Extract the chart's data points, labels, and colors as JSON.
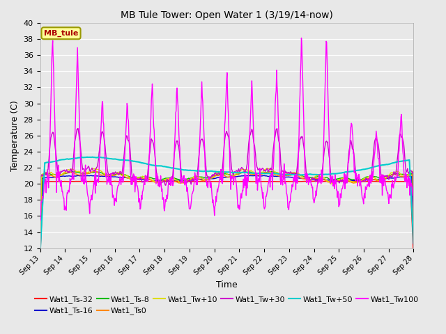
{
  "title": "MB Tule Tower: Open Water 1 (3/19/14-now)",
  "xlabel": "Time",
  "ylabel": "Temperature (C)",
  "ylim": [
    12,
    40
  ],
  "yticks": [
    12,
    14,
    16,
    18,
    20,
    22,
    24,
    26,
    28,
    30,
    32,
    34,
    36,
    38,
    40
  ],
  "xtick_labels": [
    "Sep 13",
    "Sep 14",
    "Sep 15",
    "Sep 16",
    "Sep 17",
    "Sep 18",
    "Sep 19",
    "Sep 20",
    "Sep 21",
    "Sep 22",
    "Sep 23",
    "Sep 24",
    "Sep 25",
    "Sep 26",
    "Sep 27",
    "Sep 28"
  ],
  "legend_label": "MB_tule",
  "series_colors": {
    "Wat1_Ts-32": "#ff0000",
    "Wat1_Ts-16": "#0000cc",
    "Wat1_Ts-8": "#00bb00",
    "Wat1_Ts0": "#ff8800",
    "Wat1_Tw+10": "#dddd00",
    "Wat1_Tw+30": "#cc00cc",
    "Wat1_Tw+50": "#00cccc",
    "Wat1_Tw100": "#ff00ff"
  },
  "fig_width": 6.4,
  "fig_height": 4.8,
  "dpi": 100
}
